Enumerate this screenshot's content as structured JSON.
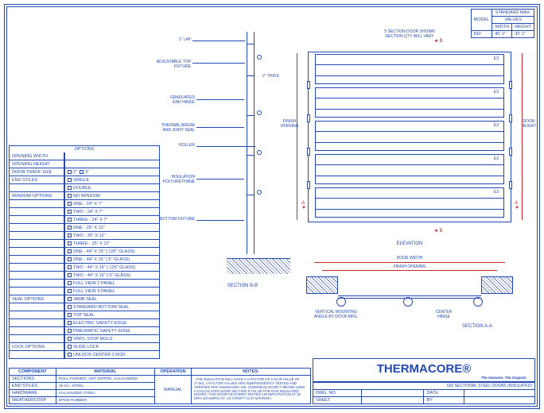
{
  "border_color": "#2149b5",
  "accent_color": "#c62828",
  "background": "#ffffff",
  "model_box": {
    "header1": "MODEL",
    "header2_a": "STANDARD MAX.",
    "header2_b": "VALUES",
    "col_w": "WIDTH",
    "col_h": "HEIGHT",
    "model": "592",
    "max_w": "40' 2\"",
    "max_h": "32' 1\""
  },
  "sectionBB": {
    "title": "SECTION B-B",
    "labels": {
      "lap": "1\" LAP",
      "adj_top": "ADJUSTABLE TOP\nFIXTURE",
      "thick": "2\" THICK",
      "grad_hinge": "GRADUATED\nEND HINGE",
      "thermal": "THERMAL BREAK\nAND JOINT SEAL",
      "roller": "ROLLER",
      "insul": "INSULATION\nPOLYURETHANE",
      "btm_fix": "BOTTOM FIXTURE"
    }
  },
  "elevation": {
    "title": "ELEVATION",
    "note_top": "5 SECTION DOOR SHOWN\nSECTION QTY WILL VARY",
    "finish_opening": "FINISH\nOPENING",
    "door_height": "DOOR\nHEIGHT",
    "arrow_a": "A",
    "arrow_b": "B",
    "panel_label": "E3",
    "panel_count": 5,
    "panel_color": "#2149b5"
  },
  "sectionAA": {
    "title": "SECTION A-A",
    "door_width": "DOOR WIDTH",
    "finish_opening": "FINISH OPENING",
    "vert_mount": "VERTICAL MOUNTING\nANGLE BY DOOR MFG.",
    "center_hinge": "CENTER\nHINGE"
  },
  "options": {
    "title": "OPTIONS",
    "rows": [
      {
        "label": "OPENING WIDTH",
        "vals": [
          ""
        ]
      },
      {
        "label": "OPENING HEIGHT",
        "vals": [
          ""
        ]
      },
      {
        "label": "DOOR TRACK SIZE",
        "vals": [
          "2\"",
          "3\""
        ],
        "inline": true
      },
      {
        "label": "END STILES",
        "vals": [
          "SINGLE",
          "DOUBLE"
        ]
      },
      {
        "label": "WINDOW OPTIONS",
        "vals": [
          "NO WINDOW",
          "ONE - 24\" X 7\"",
          "TWO - 24\" X 7\"",
          "THREE - 24\" X 7\"",
          "ONE - 25\" X 12\"",
          "TWO - 25\" X 12\"",
          "THREE - 25\" X 12\"",
          "ONE - 44\" X 15\" (.125\" GLASS)",
          "ONE - 44\" X 15\" (.5\" GLASS)",
          "TWO - 44\" X 15\" (.125\" GLASS)",
          "TWO - 44\" X 15\" (.5\" GLASS)",
          "FULL VIEW 2 PANEL",
          "FULL VIEW 3 PANEL"
        ]
      },
      {
        "label": "SEAL OPTIONS",
        "vals": [
          "JAMB SEAL",
          "STANDARD BOTTOM SEAL",
          "TOP SEAL",
          "ELECTRIC SAFETY EDGE",
          "PNEUMATIC SAFETY EDGE",
          "VINYL STOP MOLD"
        ]
      },
      {
        "label": "LOCK OPTIONS",
        "vals": [
          "SLIDE LOCK",
          "UNLOCK CENTER 2 ROD"
        ]
      }
    ]
  },
  "component_table": {
    "headers": [
      "COMPONENT",
      "MATERIAL",
      "OPERATION",
      "NOTES:"
    ],
    "rows": [
      [
        "SECTIONS",
        "ROLL-FORMED, HOT DIPPED, GALVANIZED"
      ],
      [
        "END STILES",
        "16 GA. STEEL"
      ],
      [
        "HARDWARE",
        "GALVANIZED STEEL"
      ],
      [
        "WEATHERSTRIP",
        "EPDM RUBBER"
      ]
    ],
    "operation": "MANUAL",
    "notes": "- THE INSULATION WILL HAVE A U-FACTOR OF 0.10 (R VALUE OF 17.50). U-FACTOR VALUES ARE INDEPENDENTLY TESTED AND VERIFIED PER ANSI/DASMA 105. OVERHEAD DOOR™ BRAND USES A CALCULATED DOOR SECTION R VALUE FOR OUR INSULATED DOORS. THIS DOOR FEATURES TESTED AIR INFILTRATION AT 25 MPH (40 KMPH) OF .13 CFM/FT² (2.37 M³/HR/M²)"
  },
  "titleblock": {
    "brand": "THERMACORE®",
    "tag": "The Genuine. The Original.",
    "subtitle": "592 SECTIONAL STEEL DOORS (INSULATED)",
    "fields": {
      "dwg_no": "DWG. NO.",
      "date": "DATE:",
      "sheet": "SHEET",
      "by": "BY:"
    }
  }
}
